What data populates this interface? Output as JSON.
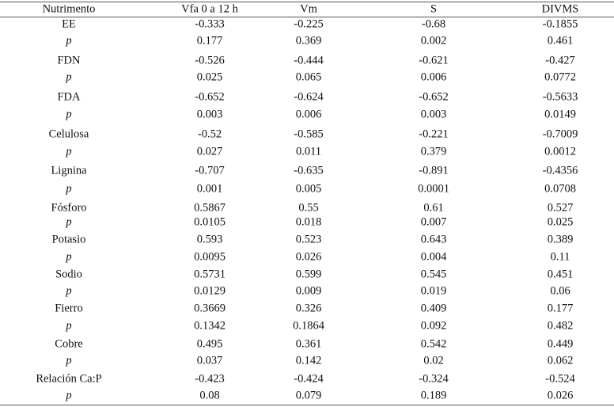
{
  "table": {
    "header": [
      "Nutrimento",
      "Vfa 0 a 12 h",
      "Vm",
      "S",
      "DIVMS"
    ],
    "rows": [
      [
        "EE",
        -0.333,
        -0.225,
        -0.68,
        -0.1855
      ],
      [
        "p",
        0.177,
        0.369,
        0.002,
        0.461
      ],
      [
        "FDN",
        -0.526,
        -0.444,
        -0.621,
        -0.427
      ],
      [
        "p",
        0.025,
        0.065,
        0.006,
        0.0772
      ],
      [
        "FDA",
        -0.652,
        -0.624,
        -0.652,
        -0.5633
      ],
      [
        "p",
        0.003,
        0.006,
        0.003,
        0.0149
      ],
      [
        "Celulosa",
        -0.52,
        -0.585,
        -0.221,
        -0.7009
      ],
      [
        "p",
        0.027,
        0.011,
        0.379,
        0.0012
      ],
      [
        "Lignina",
        -0.707,
        -0.635,
        -0.891,
        -0.4356
      ],
      [
        "p",
        0.001,
        0.005,
        0.0001,
        0.0708
      ],
      [
        "Fósforo",
        0.5867,
        0.55,
        0.61,
        0.527
      ],
      [
        "p",
        0.0105,
        0.018,
        0.007,
        0.025
      ],
      [
        "Potasio",
        0.593,
        0.523,
        0.643,
        0.389
      ],
      [
        "p",
        0.0095,
        0.026,
        0.004,
        0.11
      ],
      [
        "Sodio",
        0.5731,
        0.599,
        0.545,
        0.451
      ],
      [
        "p",
        0.0129,
        0.009,
        0.019,
        0.06
      ],
      [
        "Fierro",
        0.3669,
        0.326,
        0.409,
        0.177
      ],
      [
        "p",
        0.1342,
        0.1864,
        0.092,
        0.482
      ],
      [
        "Cobre",
        0.495,
        0.361,
        0.542,
        0.449
      ],
      [
        "p",
        0.037,
        0.142,
        0.02,
        0.062
      ],
      [
        "Relación Ca:P",
        -0.423,
        -0.424,
        -0.324,
        -0.524
      ],
      [
        "p",
        0.08,
        0.079,
        0.189,
        0.026
      ]
    ]
  }
}
